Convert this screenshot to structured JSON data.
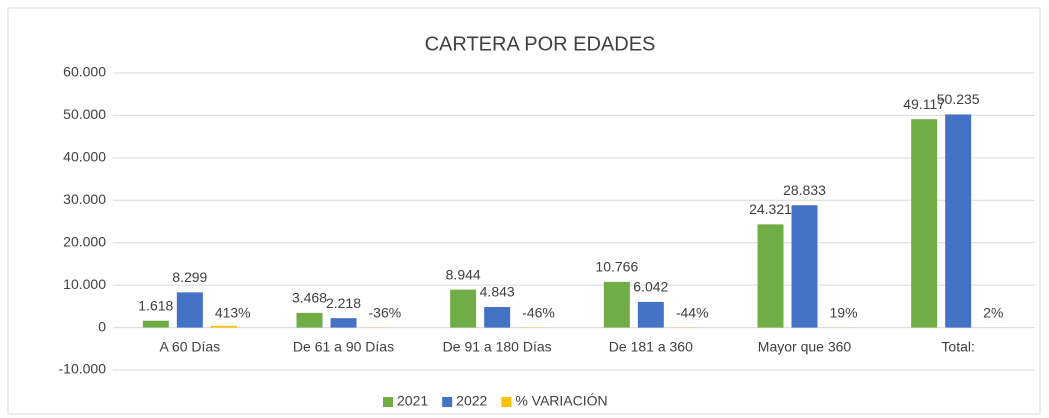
{
  "chart_data": {
    "type": "bar",
    "title": "CARTERA POR EDADES",
    "categories": [
      "A 60 Días",
      "De 61 a 90 Días",
      "De 91 a 180 Días",
      "De 181 a 360",
      "Mayor que 360",
      "Total:"
    ],
    "series": [
      {
        "name": "2021",
        "color": "#70ad47",
        "values": [
          1618,
          3468,
          8944,
          10766,
          24321,
          49117
        ],
        "value_labels": [
          "1.618",
          "3.468",
          "8.944",
          "10.766",
          "24.321",
          "49.117"
        ]
      },
      {
        "name": "2022",
        "color": "#4472c4",
        "values": [
          8299,
          2218,
          4843,
          6042,
          28833,
          50235
        ],
        "value_labels": [
          "8.299",
          "2.218",
          "4.843",
          "6.042",
          "28.833",
          "50.235"
        ]
      },
      {
        "name": "% VARIACIÓN",
        "color": "#ffc000",
        "values": [
          413,
          -36,
          -46,
          -44,
          19,
          2
        ],
        "value_labels": [
          "413%",
          "-36%",
          "-46%",
          "-44%",
          "19%",
          "2%"
        ]
      }
    ],
    "ylim": [
      -10000,
      60000
    ],
    "yticks": [
      {
        "value": 60000,
        "label": "60.000"
      },
      {
        "value": 50000,
        "label": "50.000"
      },
      {
        "value": 40000,
        "label": "40.000"
      },
      {
        "value": 30000,
        "label": "30.000"
      },
      {
        "value": 20000,
        "label": "20.000"
      },
      {
        "value": 10000,
        "label": "10.000"
      },
      0,
      {
        "value": -10000,
        "label": "-10.000"
      }
    ],
    "grid": true,
    "legend": "bottom"
  }
}
